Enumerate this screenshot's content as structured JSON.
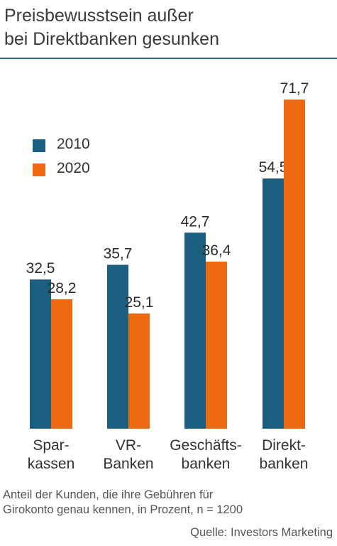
{
  "title_lines": [
    "Preisbewusstsein außer",
    "bei Direktbanken gesunken"
  ],
  "legend": [
    {
      "label": "2010",
      "color": "#1b5e80"
    },
    {
      "label": "2020",
      "color": "#ee6a10"
    }
  ],
  "category_lines": [
    [
      "Spar-",
      "kassen"
    ],
    [
      "VR-",
      "Banken"
    ],
    [
      "Geschäfts-",
      "banken"
    ],
    [
      "Direkt-",
      "banken"
    ]
  ],
  "note_lines": [
    "Anteil der Kunden, die ihre Gebühren für",
    "Girokonto genau kennen, in Prozent, n = 1200"
  ],
  "source": "Quelle: Investors Marketing",
  "chart_data": {
    "type": "bar",
    "title": "Preisbewusstsein außer bei Direktbanken gesunken",
    "categories": [
      "Sparkassen",
      "VR-Banken",
      "Geschäftsbanken",
      "Direktbanken"
    ],
    "series": [
      {
        "name": "2010",
        "color": "#1b5e80",
        "values": [
          32.5,
          35.7,
          42.7,
          54.5
        ],
        "value_labels": [
          "32,5",
          "35,7",
          "42,7",
          "54,5"
        ]
      },
      {
        "name": "2020",
        "color": "#ee6a10",
        "values": [
          28.2,
          25.1,
          36.4,
          71.7
        ],
        "value_labels": [
          "28,2",
          "25,1",
          "36,4",
          "71,7"
        ]
      }
    ],
    "ylim": [
      0,
      71.7
    ],
    "grid": false,
    "legend_position": "top-left"
  }
}
